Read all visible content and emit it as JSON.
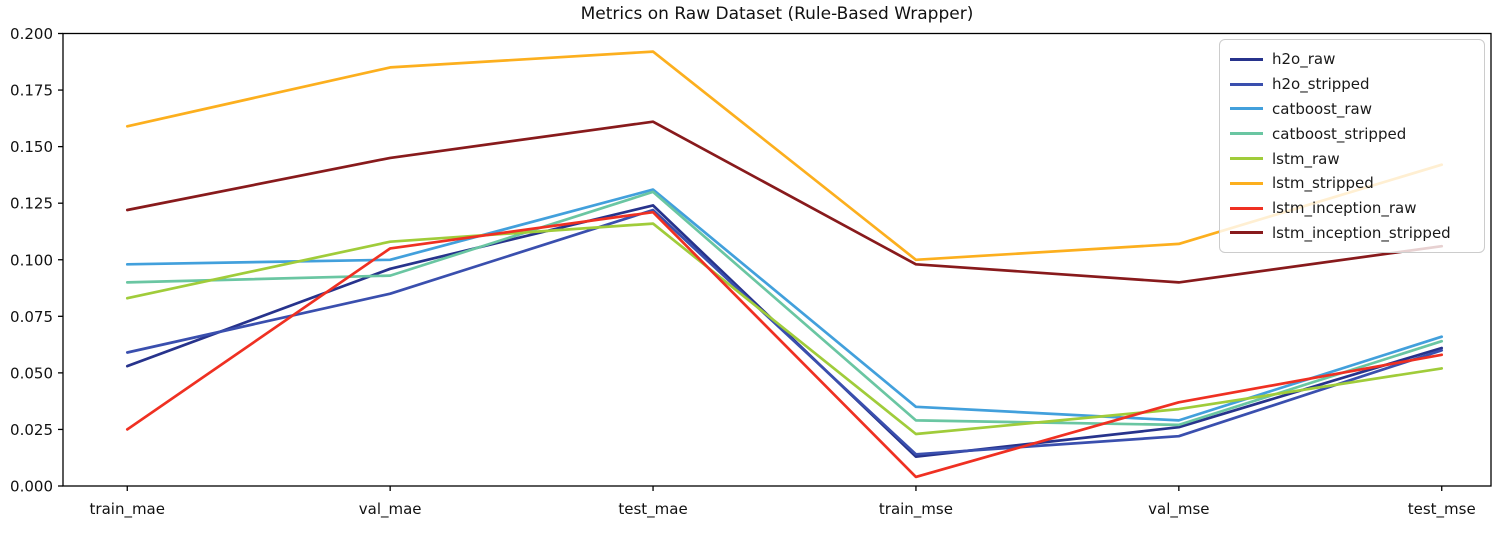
{
  "title": "Metrics on Raw Dataset (Rule-Based Wrapper)",
  "chart_data": {
    "type": "line",
    "title": "Metrics on Raw Dataset (Rule-Based Wrapper)",
    "categories": [
      "train_mae",
      "val_mae",
      "test_mae",
      "train_mse",
      "val_mse",
      "test_mse"
    ],
    "series": [
      {
        "name": "h2o_raw",
        "color": "#27338c",
        "values": [
          0.053,
          0.096,
          0.124,
          0.013,
          0.026,
          0.061
        ]
      },
      {
        "name": "h2o_stripped",
        "color": "#3a4fae",
        "values": [
          0.059,
          0.085,
          0.122,
          0.014,
          0.022,
          0.06
        ]
      },
      {
        "name": "catboost_raw",
        "color": "#42a0dc",
        "values": [
          0.098,
          0.1,
          0.131,
          0.035,
          0.029,
          0.066
        ]
      },
      {
        "name": "catboost_stripped",
        "color": "#6ac6a2",
        "values": [
          0.09,
          0.093,
          0.13,
          0.029,
          0.027,
          0.064
        ]
      },
      {
        "name": "lstm_raw",
        "color": "#a0cc3a",
        "values": [
          0.083,
          0.108,
          0.116,
          0.023,
          0.034,
          0.052
        ]
      },
      {
        "name": "lstm_stripped",
        "color": "#fcaf1e",
        "values": [
          0.159,
          0.185,
          0.192,
          0.1,
          0.107,
          0.142
        ]
      },
      {
        "name": "lstm_inception_raw",
        "color": "#ef3022",
        "values": [
          0.025,
          0.105,
          0.121,
          0.004,
          0.037,
          0.058
        ]
      },
      {
        "name": "lstm_inception_stripped",
        "color": "#881a1c",
        "values": [
          0.122,
          0.145,
          0.161,
          0.098,
          0.09,
          0.106
        ]
      }
    ],
    "ylim": [
      0.0,
      0.2
    ],
    "ytick_step": 0.025,
    "ytick_labels": [
      "0.000",
      "0.025",
      "0.050",
      "0.075",
      "0.100",
      "0.125",
      "0.150",
      "0.175",
      "0.200"
    ],
    "xlabel": "",
    "ylabel": "",
    "grid": false,
    "legend_position": "upper right",
    "axis_color": "#000000"
  }
}
